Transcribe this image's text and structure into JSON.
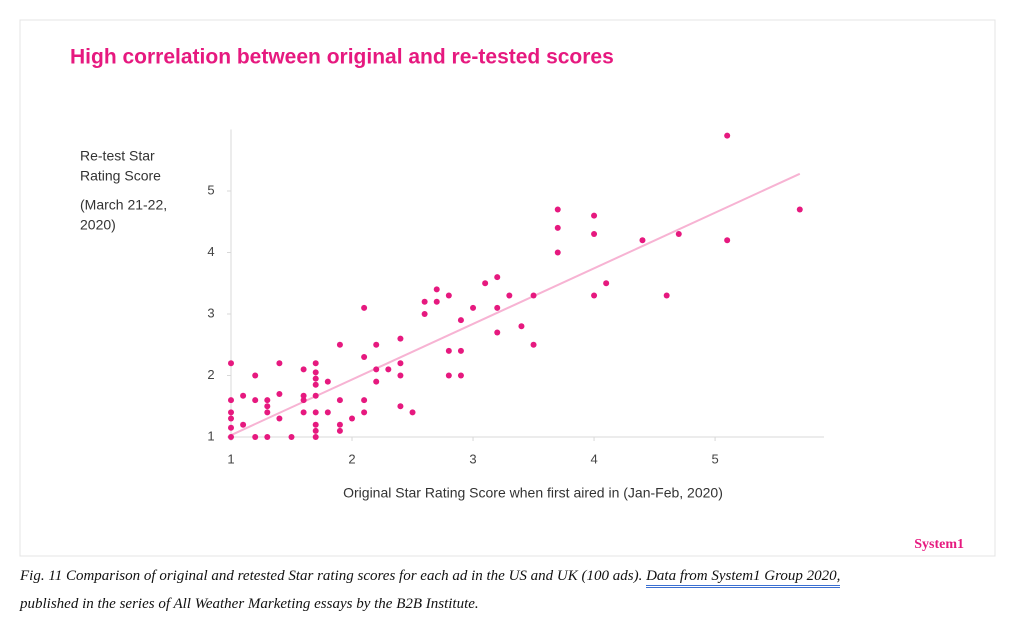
{
  "chart_data": {
    "type": "scatter",
    "title": "High correlation between original and re-tested scores",
    "y_label": [
      "Re-test Star",
      "Rating Score",
      "(March 21-22,",
      "2020)"
    ],
    "x_label": "Original Star Rating Score when first aired in (Jan-Feb, 2020)",
    "brand": "System1",
    "xlim": [
      1,
      5.9
    ],
    "ylim": [
      1,
      6
    ],
    "xticks": [
      1,
      2,
      3,
      4,
      5
    ],
    "yticks": [
      1,
      2,
      3,
      4,
      5
    ],
    "series": [
      {
        "color": "#e6197f",
        "x": [
          1,
          1,
          1,
          1,
          1,
          1,
          1.1,
          1.1,
          1.2,
          1.2,
          1.2,
          1.3,
          1.3,
          1.3,
          1.3,
          1.4,
          1.4,
          1.4,
          1.5,
          1.6,
          1.6,
          1.6,
          1.6,
          1.7,
          1.7,
          1.7,
          1.7,
          1.7,
          1.7,
          1.7,
          1.7,
          1.7,
          1.8,
          1.8,
          1.9,
          1.9,
          1.9,
          1.9,
          2.0,
          2.1,
          2.1,
          2.1,
          2.1,
          2.2,
          2.2,
          2.2,
          2.3,
          2.4,
          2.4,
          2.4,
          2.4,
          2.5,
          2.6,
          2.6,
          2.7,
          2.7,
          2.8,
          2.8,
          2.8,
          2.9,
          2.9,
          2.9,
          3.0,
          3.1,
          3.2,
          3.2,
          3.2,
          3.3,
          3.4,
          3.5,
          3.5,
          3.7,
          3.7,
          3.7,
          4.0,
          4.0,
          4.0,
          4.1,
          4.4,
          4.6,
          4.7,
          5.1,
          5.1,
          5.7
        ],
        "values": [
          1.0,
          1.15,
          1.3,
          1.4,
          1.6,
          2.2,
          1.2,
          1.67,
          1.0,
          2.0,
          1.6,
          1.0,
          1.6,
          1.5,
          1.4,
          1.7,
          2.2,
          1.3,
          1.0,
          2.1,
          1.67,
          1.6,
          1.4,
          2.2,
          2.05,
          1.95,
          1.85,
          1.67,
          1.4,
          1.2,
          1.1,
          1.0,
          1.9,
          1.4,
          2.5,
          1.6,
          1.2,
          1.1,
          1.3,
          1.6,
          1.4,
          2.3,
          3.1,
          2.5,
          2.1,
          1.9,
          2.1,
          2.6,
          2.2,
          2.0,
          1.5,
          1.4,
          3.2,
          3.0,
          3.4,
          3.2,
          3.3,
          2.4,
          2.0,
          2.9,
          2.4,
          2.0,
          3.1,
          3.5,
          3.6,
          3.1,
          2.7,
          3.3,
          2.8,
          3.3,
          2.5,
          4.7,
          4.4,
          4.0,
          4.6,
          4.3,
          3.3,
          3.5,
          4.2,
          3.3,
          4.3,
          5.9,
          4.2,
          4.7
        ]
      }
    ],
    "trendline": {
      "color": "#f7b3d3",
      "x": [
        1,
        5.7
      ],
      "values": [
        1.03,
        5.28
      ]
    },
    "caption": {
      "text": "Fig. 11 Comparison of original and retested Star rating scores for each ad in the US and UK (100 ads).",
      "link": "Data from System1 Group 2020,",
      "text2": "published in the series of All Weather Marketing essays by the B2B Institute."
    }
  }
}
